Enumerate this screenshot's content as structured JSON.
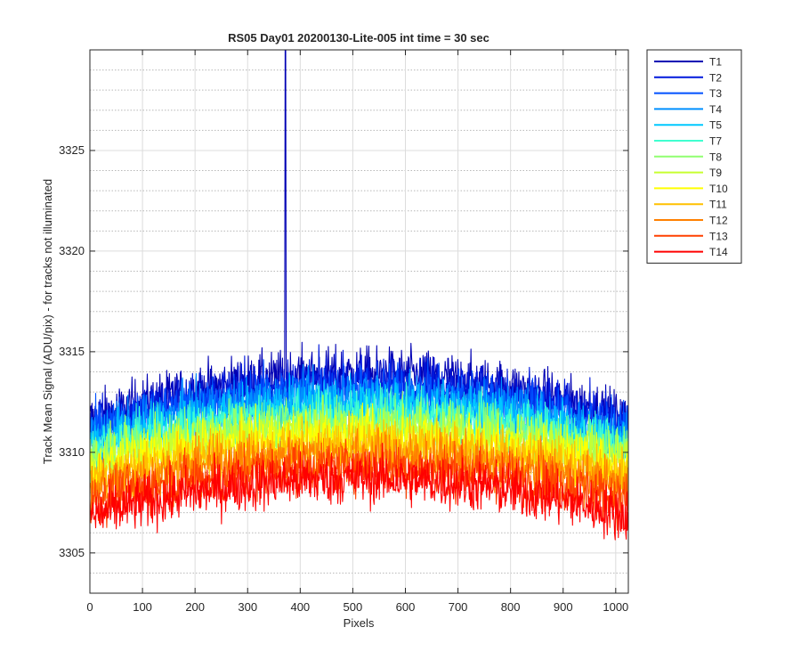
{
  "chart_data": {
    "type": "line",
    "title": "RS05 Day01 20200130-Lite-005 int time = 30 sec",
    "xlabel": "Pixels",
    "ylabel": "Track Mean Signal (ADU/pix) - for tracks not illuminated",
    "xlim": [
      0,
      1024
    ],
    "ylim": [
      3303,
      3330
    ],
    "x_ticks": [
      0,
      100,
      200,
      300,
      400,
      500,
      600,
      700,
      800,
      900,
      1000
    ],
    "y_ticks": [
      3305,
      3310,
      3315,
      3320,
      3325
    ],
    "y_minor_step": 1,
    "grid": true,
    "legend_position": "outside-top-right",
    "spike": {
      "series": "T1",
      "x": 372,
      "peak": 3330
    },
    "series": [
      {
        "name": "T1",
        "color": "#0000b4",
        "edge": 3311.6,
        "center": 3313.9
      },
      {
        "name": "T2",
        "color": "#0018dc",
        "edge": 3311.3,
        "center": 3313.5
      },
      {
        "name": "T3",
        "color": "#0050ff",
        "edge": 3311.0,
        "center": 3313.1
      },
      {
        "name": "T4",
        "color": "#0090ff",
        "edge": 3310.7,
        "center": 3312.7
      },
      {
        "name": "T5",
        "color": "#00c8ff",
        "edge": 3310.4,
        "center": 3312.3
      },
      {
        "name": "T7",
        "color": "#40ffd0",
        "edge": 3310.1,
        "center": 3311.9
      },
      {
        "name": "T8",
        "color": "#90ff70",
        "edge": 3309.8,
        "center": 3311.5
      },
      {
        "name": "T9",
        "color": "#c8ff30",
        "edge": 3309.5,
        "center": 3311.1
      },
      {
        "name": "T10",
        "color": "#ffff00",
        "edge": 3309.1,
        "center": 3310.7
      },
      {
        "name": "T11",
        "color": "#ffc000",
        "edge": 3308.7,
        "center": 3310.3
      },
      {
        "name": "T12",
        "color": "#ff8000",
        "edge": 3308.2,
        "center": 3309.8
      },
      {
        "name": "T13",
        "color": "#ff4000",
        "edge": 3307.6,
        "center": 3309.3
      },
      {
        "name": "T14",
        "color": "#ff0000",
        "edge": 3306.8,
        "center": 3308.7
      }
    ],
    "noise_amplitude": 1.2,
    "samples": 1024
  }
}
